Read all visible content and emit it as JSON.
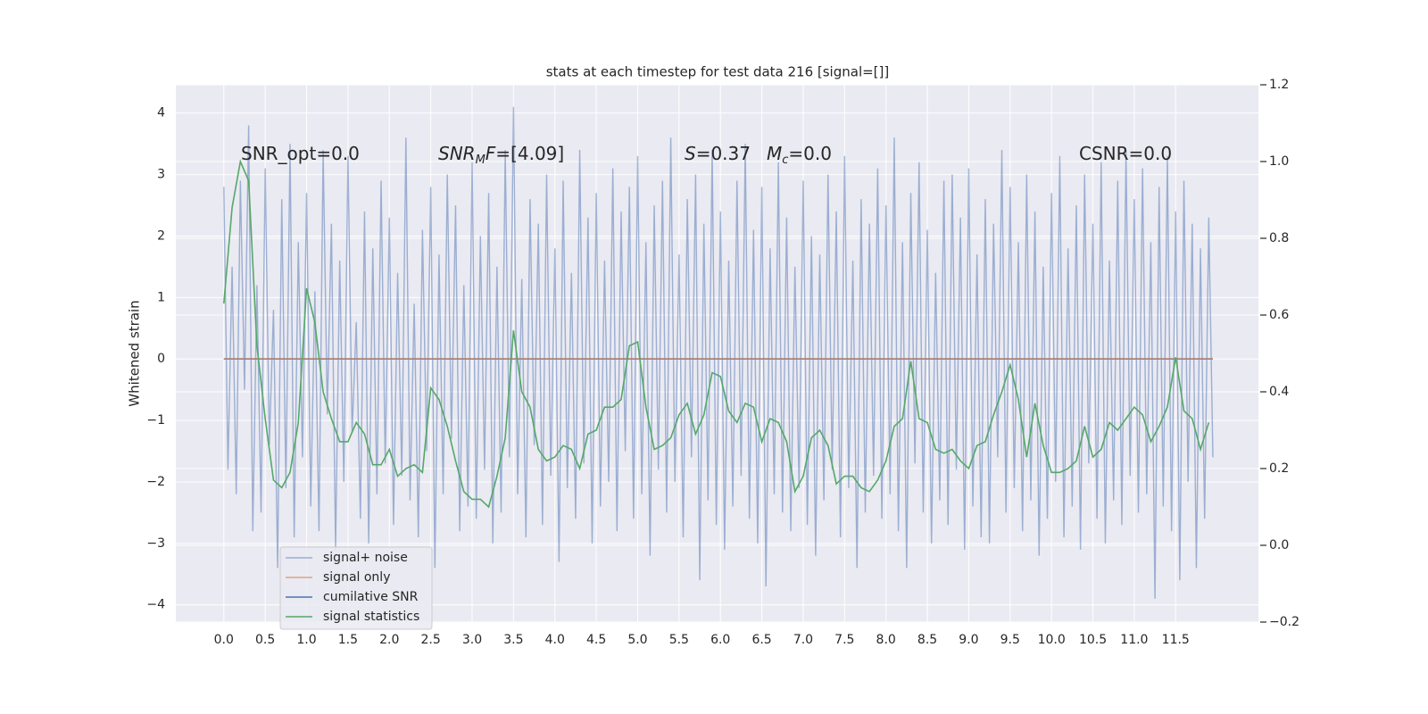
{
  "chart_data": {
    "type": "line",
    "title": "stats at each timestep for test data 216 [signal=[]]",
    "ylabel": "Whitened strain",
    "xlim": [
      -0.58,
      12.5
    ],
    "ylim": [
      -4.28,
      4.46
    ],
    "y2lim": [
      -0.2,
      1.2
    ],
    "xticks": [
      {
        "value": 0,
        "label": "0.0"
      },
      {
        "value": 0.5,
        "label": "0.5"
      },
      {
        "value": 1,
        "label": "1.0"
      },
      {
        "value": 1.5,
        "label": "1.5"
      },
      {
        "value": 2,
        "label": "2.0"
      },
      {
        "value": 2.5,
        "label": "2.5"
      },
      {
        "value": 3,
        "label": "3.0"
      },
      {
        "value": 3.5,
        "label": "3.5"
      },
      {
        "value": 4,
        "label": "4.0"
      },
      {
        "value": 4.5,
        "label": "4.5"
      },
      {
        "value": 5,
        "label": "5.0"
      },
      {
        "value": 5.5,
        "label": "5.5"
      },
      {
        "value": 6,
        "label": "6.0"
      },
      {
        "value": 6.5,
        "label": "6.5"
      },
      {
        "value": 7,
        "label": "7.0"
      },
      {
        "value": 7.5,
        "label": "7.5"
      },
      {
        "value": 8,
        "label": "8.0"
      },
      {
        "value": 8.5,
        "label": "8.5"
      },
      {
        "value": 9,
        "label": "9.0"
      },
      {
        "value": 9.5,
        "label": "9.5"
      },
      {
        "value": 10,
        "label": "10.0"
      },
      {
        "value": 10.5,
        "label": "10.5"
      },
      {
        "value": 11,
        "label": "11.0"
      },
      {
        "value": 11.5,
        "label": "11.5"
      }
    ],
    "yticks": [
      {
        "value": -4,
        "label": "−4"
      },
      {
        "value": -3,
        "label": "−3"
      },
      {
        "value": -2,
        "label": "−2"
      },
      {
        "value": -1,
        "label": "−1"
      },
      0,
      1,
      2,
      3,
      4
    ],
    "y2ticks": [
      {
        "value": -0.2,
        "label": "−0.2"
      },
      {
        "value": 0,
        "label": "0.0"
      },
      {
        "value": 0.2,
        "label": "0.2"
      },
      {
        "value": 0.4,
        "label": "0.4"
      },
      {
        "value": 0.6,
        "label": "0.6"
      },
      {
        "value": 0.8,
        "label": "0.8"
      },
      {
        "value": 1,
        "label": "1.0"
      },
      {
        "value": 1.2,
        "label": "1.2"
      }
    ],
    "grid": true,
    "legend": "lower left",
    "annotations": [
      [
        "SNR_opt=0.0"
      ],
      [
        "SNR",
        "M",
        "F",
        "=[4.09]"
      ],
      [
        "S",
        "=0.37"
      ],
      [
        "M",
        "c",
        "=0.0"
      ],
      [
        "CSNR=0.0"
      ]
    ],
    "series": [
      {
        "name": "signal+ noise",
        "color": "#4c72b0",
        "alpha": 0.5,
        "x": [
          0,
          0.05,
          0.1,
          0.15,
          0.2,
          0.25,
          0.3,
          0.35,
          0.4,
          0.45,
          0.5,
          0.55,
          0.6,
          0.65,
          0.7,
          0.75,
          0.8,
          0.85,
          0.9,
          0.95,
          1,
          1.05,
          1.1,
          1.15,
          1.2,
          1.25,
          1.3,
          1.35,
          1.4,
          1.45,
          1.5,
          1.55,
          1.6,
          1.65,
          1.7,
          1.75,
          1.8,
          1.85,
          1.9,
          1.95,
          2,
          2.05,
          2.1,
          2.15,
          2.2,
          2.25,
          2.3,
          2.35,
          2.4,
          2.45,
          2.5,
          2.55,
          2.6,
          2.65,
          2.7,
          2.75,
          2.8,
          2.85,
          2.9,
          2.95,
          3,
          3.05,
          3.1,
          3.15,
          3.2,
          3.25,
          3.3,
          3.35,
          3.4,
          3.45,
          3.5,
          3.55,
          3.6,
          3.65,
          3.7,
          3.75,
          3.8,
          3.85,
          3.9,
          3.95,
          4,
          4.05,
          4.1,
          4.15,
          4.2,
          4.25,
          4.3,
          4.35,
          4.4,
          4.45,
          4.5,
          4.55,
          4.6,
          4.65,
          4.7,
          4.75,
          4.8,
          4.85,
          4.9,
          4.95,
          5,
          5.05,
          5.1,
          5.15,
          5.2,
          5.25,
          5.3,
          5.35,
          5.4,
          5.45,
          5.5,
          5.55,
          5.6,
          5.65,
          5.7,
          5.75,
          5.8,
          5.85,
          5.9,
          5.95,
          6,
          6.05,
          6.1,
          6.15,
          6.2,
          6.25,
          6.3,
          6.35,
          6.4,
          6.45,
          6.5,
          6.55,
          6.6,
          6.65,
          6.7,
          6.75,
          6.8,
          6.85,
          6.9,
          6.95,
          7,
          7.05,
          7.1,
          7.15,
          7.2,
          7.25,
          7.3,
          7.35,
          7.4,
          7.45,
          7.5,
          7.55,
          7.6,
          7.65,
          7.7,
          7.75,
          7.8,
          7.85,
          7.9,
          7.95,
          8,
          8.05,
          8.1,
          8.15,
          8.2,
          8.25,
          8.3,
          8.35,
          8.4,
          8.45,
          8.5,
          8.55,
          8.6,
          8.65,
          8.7,
          8.75,
          8.8,
          8.85,
          8.9,
          8.95,
          9,
          9.05,
          9.1,
          9.15,
          9.2,
          9.25,
          9.3,
          9.35,
          9.4,
          9.45,
          9.5,
          9.55,
          9.6,
          9.65,
          9.7,
          9.75,
          9.8,
          9.85,
          9.9,
          9.95,
          10,
          10.05,
          10.1,
          10.15,
          10.2,
          10.25,
          10.3,
          10.35,
          10.4,
          10.45,
          10.5,
          10.55,
          10.6,
          10.65,
          10.7,
          10.75,
          10.8,
          10.85,
          10.9,
          10.95,
          11,
          11.05,
          11.1,
          11.15,
          11.2,
          11.25,
          11.3,
          11.35,
          11.4,
          11.45,
          11.5,
          11.55,
          11.6,
          11.65,
          11.7,
          11.75,
          11.8,
          11.85,
          11.9,
          11.95
        ],
        "values": [
          2.8,
          -1.8,
          1.5,
          -2.2,
          2.9,
          -0.5,
          3.8,
          -2.8,
          1.2,
          -2.5,
          3.1,
          -1.4,
          0.8,
          -3.4,
          2.6,
          -2.1,
          3.5,
          -2.9,
          1.9,
          -1.6,
          2.7,
          -2.4,
          1.1,
          -2.8,
          3.4,
          -0.9,
          2.2,
          -3.1,
          1.6,
          -2.0,
          3.3,
          -1.2,
          0.6,
          -2.6,
          2.4,
          -3.0,
          1.8,
          -2.2,
          2.9,
          -1.7,
          2.3,
          -2.7,
          1.4,
          -1.9,
          3.6,
          -2.3,
          0.9,
          -2.9,
          2.1,
          -1.5,
          2.8,
          -3.4,
          1.7,
          -2.2,
          3.0,
          -1.3,
          2.5,
          -2.8,
          1.2,
          -2.4,
          3.2,
          -2.6,
          2.0,
          -1.8,
          2.7,
          -3.0,
          1.5,
          -2.5,
          3.4,
          -1.6,
          4.1,
          -2.2,
          1.3,
          -2.9,
          2.6,
          -1.4,
          2.2,
          -2.7,
          3.0,
          -1.9,
          1.8,
          -3.3,
          2.9,
          -2.1,
          1.4,
          -2.6,
          3.4,
          -1.7,
          2.3,
          -3.0,
          2.7,
          -2.4,
          1.6,
          -2.0,
          3.1,
          -2.8,
          2.4,
          -1.5,
          2.8,
          -2.6,
          3.3,
          -2.2,
          1.9,
          -3.2,
          2.5,
          -1.8,
          2.9,
          -2.5,
          3.6,
          -2.0,
          1.7,
          -2.9,
          2.6,
          -1.6,
          3.0,
          -3.6,
          2.2,
          -2.3,
          3.4,
          -2.7,
          2.4,
          -3.1,
          1.6,
          -2.4,
          2.9,
          -1.9,
          3.5,
          -2.6,
          2.1,
          -3.0,
          2.8,
          -3.7,
          1.8,
          -2.2,
          3.2,
          -2.5,
          2.3,
          -2.8,
          1.5,
          -2.1,
          2.9,
          -2.7,
          2.0,
          -3.2,
          1.7,
          -2.3,
          3.0,
          -1.8,
          2.4,
          -2.9,
          3.3,
          -2.1,
          1.6,
          -3.4,
          2.6,
          -2.5,
          2.2,
          -1.9,
          3.1,
          -2.6,
          2.5,
          -2.2,
          3.6,
          -2.8,
          1.9,
          -3.4,
          2.7,
          -1.7,
          3.2,
          -2.5,
          2.1,
          -3.0,
          1.4,
          -2.3,
          2.9,
          -2.7,
          3.0,
          -1.8,
          2.3,
          -3.1,
          3.1,
          -2.4,
          1.7,
          -2.9,
          2.6,
          -3.0,
          2.2,
          -1.6,
          3.4,
          -2.5,
          2.8,
          -2.1,
          1.9,
          -2.8,
          3.0,
          -2.3,
          2.4,
          -3.2,
          1.5,
          -2.6,
          2.7,
          -2.0,
          3.3,
          -2.9,
          1.8,
          -2.4,
          2.5,
          -3.1,
          3.0,
          -1.7,
          2.2,
          -2.6,
          3.2,
          -3.0,
          1.6,
          -2.3,
          2.9,
          -2.7,
          3.4,
          -1.9,
          2.6,
          -2.5,
          3.1,
          -2.2,
          1.9,
          -3.9,
          2.8,
          -2.4,
          3.3,
          -2.8,
          2.4,
          -3.6,
          2.9,
          -2.0,
          2.2,
          -3.4,
          1.8,
          -2.6,
          2.3,
          -1.6
        ]
      },
      {
        "name": "signal only",
        "color": "#dd8452",
        "alpha": 0.7,
        "x": [
          0,
          11.95
        ],
        "values": [
          0,
          0
        ]
      },
      {
        "name": "cumilative SNR",
        "color": "#4c72b0",
        "alpha": 1,
        "x": [
          0,
          11.95
        ],
        "values": [
          0,
          0
        ]
      },
      {
        "name": "signal statistics",
        "color": "#55a868",
        "alpha": 1,
        "axis": "y2",
        "x": [
          0,
          0.1,
          0.2,
          0.3,
          0.4,
          0.5,
          0.6,
          0.7,
          0.8,
          0.9,
          1,
          1.1,
          1.2,
          1.3,
          1.4,
          1.5,
          1.6,
          1.7,
          1.8,
          1.9,
          2,
          2.1,
          2.2,
          2.3,
          2.4,
          2.5,
          2.6,
          2.7,
          2.8,
          2.9,
          3,
          3.1,
          3.2,
          3.3,
          3.4,
          3.5,
          3.6,
          3.7,
          3.8,
          3.9,
          4,
          4.1,
          4.2,
          4.3,
          4.4,
          4.5,
          4.6,
          4.7,
          4.8,
          4.9,
          5,
          5.1,
          5.2,
          5.3,
          5.4,
          5.5,
          5.6,
          5.7,
          5.8,
          5.9,
          6,
          6.1,
          6.2,
          6.3,
          6.4,
          6.5,
          6.6,
          6.7,
          6.8,
          6.9,
          7,
          7.1,
          7.2,
          7.3,
          7.4,
          7.5,
          7.6,
          7.7,
          7.8,
          7.9,
          8,
          8.1,
          8.2,
          8.3,
          8.4,
          8.5,
          8.6,
          8.7,
          8.8,
          8.9,
          9,
          9.1,
          9.2,
          9.3,
          9.4,
          9.5,
          9.6,
          9.7,
          9.8,
          9.9,
          10,
          10.1,
          10.2,
          10.3,
          10.4,
          10.5,
          10.6,
          10.7,
          10.8,
          10.9,
          11,
          11.1,
          11.2,
          11.3,
          11.4,
          11.5,
          11.6,
          11.7,
          11.8,
          11.9
        ],
        "values": [
          0.63,
          0.88,
          1.0,
          0.95,
          0.52,
          0.33,
          0.17,
          0.15,
          0.19,
          0.32,
          0.67,
          0.58,
          0.4,
          0.33,
          0.27,
          0.27,
          0.32,
          0.29,
          0.21,
          0.21,
          0.25,
          0.18,
          0.2,
          0.21,
          0.19,
          0.41,
          0.38,
          0.31,
          0.22,
          0.14,
          0.12,
          0.12,
          0.1,
          0.18,
          0.28,
          0.56,
          0.4,
          0.36,
          0.25,
          0.22,
          0.23,
          0.26,
          0.25,
          0.2,
          0.29,
          0.3,
          0.36,
          0.36,
          0.38,
          0.52,
          0.53,
          0.36,
          0.25,
          0.26,
          0.28,
          0.34,
          0.37,
          0.29,
          0.34,
          0.45,
          0.44,
          0.35,
          0.32,
          0.37,
          0.36,
          0.27,
          0.33,
          0.32,
          0.27,
          0.14,
          0.18,
          0.28,
          0.3,
          0.26,
          0.16,
          0.18,
          0.18,
          0.15,
          0.14,
          0.17,
          0.22,
          0.31,
          0.33,
          0.48,
          0.33,
          0.32,
          0.25,
          0.24,
          0.25,
          0.22,
          0.2,
          0.26,
          0.27,
          0.34,
          0.4,
          0.47,
          0.38,
          0.23,
          0.37,
          0.26,
          0.19,
          0.19,
          0.2,
          0.22,
          0.31,
          0.23,
          0.25,
          0.32,
          0.3,
          0.33,
          0.36,
          0.34,
          0.27,
          0.31,
          0.36,
          0.49,
          0.35,
          0.33,
          0.25,
          0.32
        ]
      }
    ]
  }
}
